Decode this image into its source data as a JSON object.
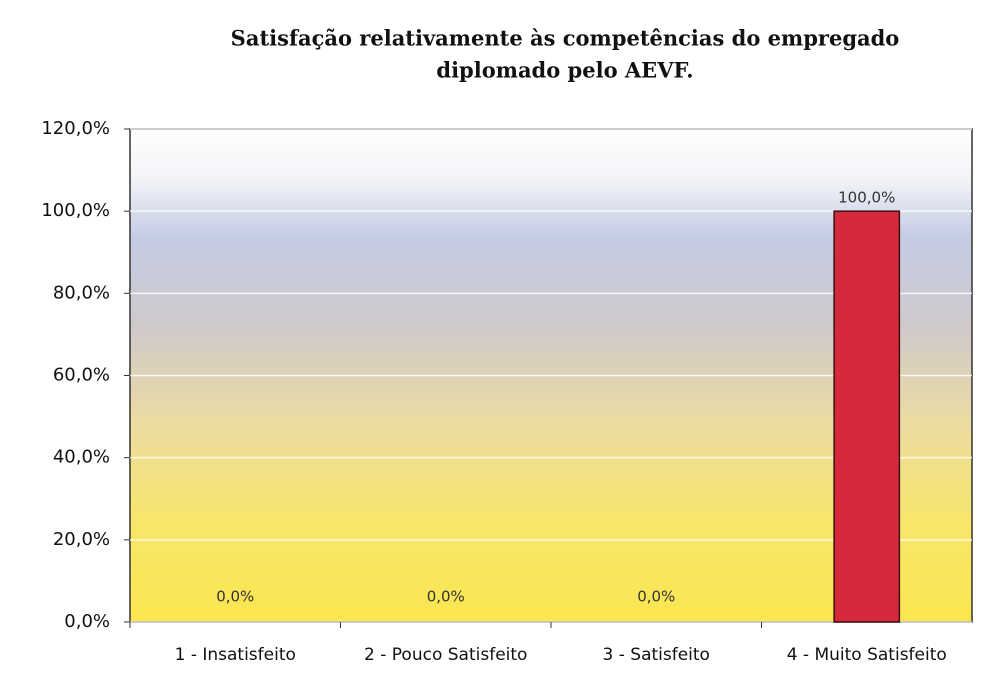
{
  "chart_data": {
    "type": "bar",
    "title": [
      "Satisfação relativamente às competências do empregado",
      "diplomado pelo AEVF."
    ],
    "categories": [
      "1 - Insatisfeito",
      "2 - Pouco Satisfeito",
      "3 - Satisfeito",
      "4 - Muito Satisfeito"
    ],
    "values": [
      0,
      0,
      0,
      100
    ],
    "value_labels": [
      "0,0%",
      "0,0%",
      "0,0%",
      "100,0%"
    ],
    "color": "#d42a3c",
    "ylim": [
      0,
      120
    ],
    "yticks": [
      {
        "value": 0,
        "label": "0,0%"
      },
      {
        "value": 20,
        "label": "20,0%"
      },
      {
        "value": 40,
        "label": "40,0%"
      },
      {
        "value": 60,
        "label": "60,0%"
      },
      {
        "value": 80,
        "label": "80,0%"
      },
      {
        "value": 100,
        "label": "100,0%"
      },
      {
        "value": 120,
        "label": "120,0%"
      }
    ],
    "grid": true
  }
}
